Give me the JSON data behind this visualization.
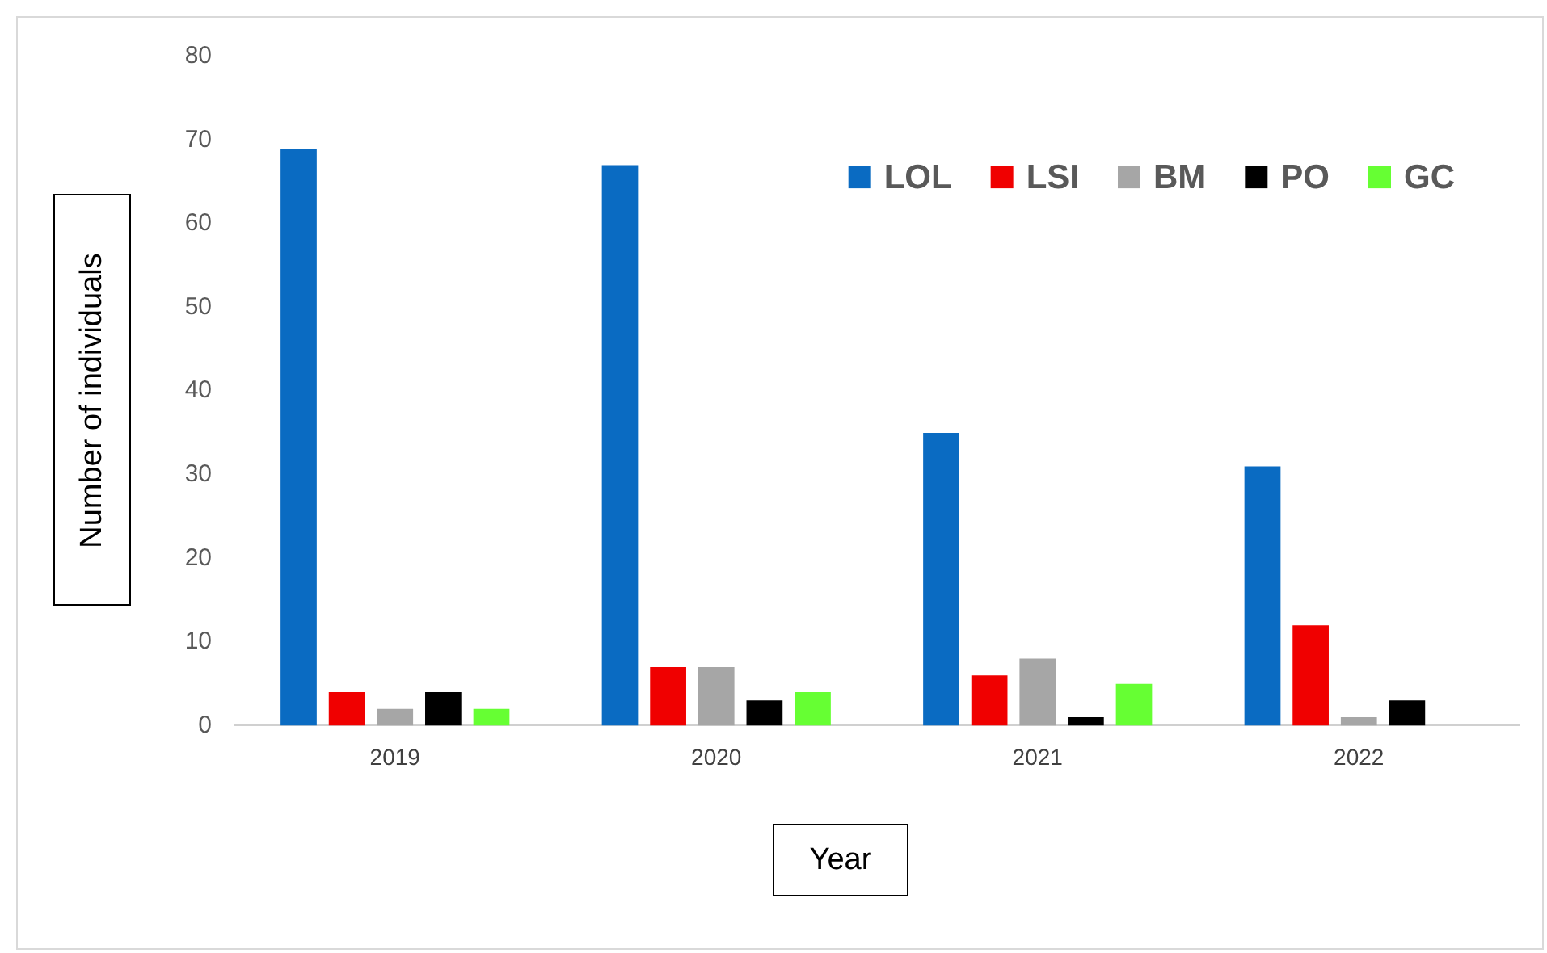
{
  "chart_data": {
    "type": "bar",
    "xlabel": "Year",
    "ylabel": "Number of individuals",
    "categories": [
      "2019",
      "2020",
      "2021",
      "2022"
    ],
    "series": [
      {
        "name": "LOL",
        "color": "#0a6bc2",
        "values": [
          69,
          67,
          35,
          31
        ]
      },
      {
        "name": "LSI",
        "color": "#f00000",
        "values": [
          4,
          7,
          6,
          12
        ]
      },
      {
        "name": "BM",
        "color": "#a6a6a6",
        "values": [
          2,
          7,
          8,
          1
        ]
      },
      {
        "name": "PO",
        "color": "#000000",
        "values": [
          4,
          3,
          1,
          3
        ]
      },
      {
        "name": "GC",
        "color": "#66ff33",
        "values": [
          2,
          4,
          5,
          0
        ]
      }
    ],
    "ylim": [
      0,
      80
    ],
    "yticks": [
      0,
      10,
      20,
      30,
      40,
      50,
      60,
      70,
      80
    ],
    "grid": false,
    "legend": "top right"
  }
}
